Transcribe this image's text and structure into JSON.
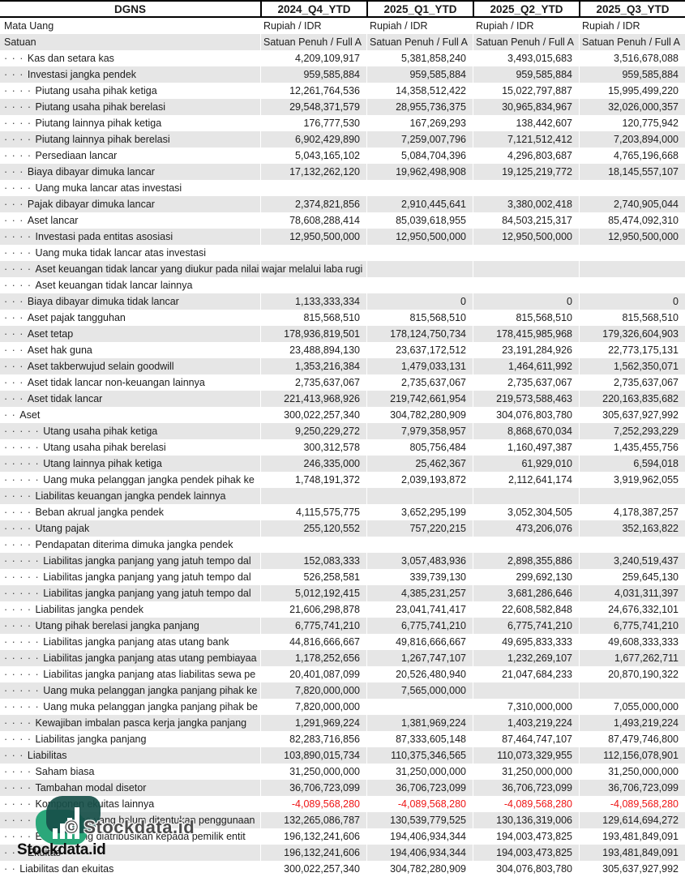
{
  "header": {
    "company": "DGNS",
    "periods": [
      "2024_Q4_YTD",
      "2025_Q1_YTD",
      "2025_Q2_YTD",
      "2025_Q3_YTD"
    ]
  },
  "meta": {
    "mata_uang_label": "Mata Uang",
    "mata_uang_values": [
      "Rupiah / IDR",
      "Rupiah / IDR",
      "Rupiah / IDR",
      "Rupiah / IDR"
    ],
    "satuan_label": "Satuan",
    "satuan_values": [
      "Satuan Penuh / Full A",
      "Satuan Penuh / Full A",
      "Satuan Penuh / Full A",
      "Satuan Penuh / Full A"
    ]
  },
  "rows": [
    {
      "dots": 3,
      "label": "Kas dan setara kas",
      "values": [
        "4,209,109,917",
        "5,381,858,240",
        "3,493,015,683",
        "3,516,678,088"
      ]
    },
    {
      "dots": 3,
      "label": "Investasi jangka pendek",
      "values": [
        "959,585,884",
        "959,585,884",
        "959,585,884",
        "959,585,884"
      ]
    },
    {
      "dots": 4,
      "label": "Piutang usaha pihak ketiga",
      "values": [
        "12,261,764,536",
        "14,358,512,422",
        "15,022,797,887",
        "15,995,499,220"
      ]
    },
    {
      "dots": 4,
      "label": "Piutang usaha pihak berelasi",
      "values": [
        "29,548,371,579",
        "28,955,736,375",
        "30,965,834,967",
        "32,026,000,357"
      ]
    },
    {
      "dots": 4,
      "label": "Piutang lainnya pihak ketiga",
      "values": [
        "176,777,530",
        "167,269,293",
        "138,442,607",
        "120,775,942"
      ]
    },
    {
      "dots": 4,
      "label": "Piutang lainnya pihak berelasi",
      "values": [
        "6,902,429,890",
        "7,259,007,796",
        "7,121,512,412",
        "7,203,894,000"
      ]
    },
    {
      "dots": 4,
      "label": "Persediaan lancar",
      "values": [
        "5,043,165,102",
        "5,084,704,396",
        "4,296,803,687",
        "4,765,196,668"
      ]
    },
    {
      "dots": 3,
      "label": "Biaya dibayar dimuka lancar",
      "values": [
        "17,132,262,120",
        "19,962,498,908",
        "19,125,219,772",
        "18,145,557,107"
      ]
    },
    {
      "dots": 4,
      "label": "Uang muka lancar atas investasi",
      "values": [
        "",
        "",
        "",
        ""
      ]
    },
    {
      "dots": 3,
      "label": "Pajak dibayar dimuka lancar",
      "values": [
        "2,374,821,856",
        "2,910,445,641",
        "3,380,002,418",
        "2,740,905,044"
      ]
    },
    {
      "dots": 3,
      "label": "Aset lancar",
      "values": [
        "78,608,288,414",
        "85,039,618,955",
        "84,503,215,317",
        "85,474,092,310"
      ]
    },
    {
      "dots": 4,
      "label": "Investasi pada entitas asosiasi",
      "values": [
        "12,950,500,000",
        "12,950,500,000",
        "12,950,500,000",
        "12,950,500,000"
      ]
    },
    {
      "dots": 4,
      "label": "Uang muka tidak lancar atas investasi",
      "values": [
        "",
        "",
        "",
        ""
      ]
    },
    {
      "dots": 4,
      "label": "Aset keuangan tidak lancar yang diukur pada nilai wajar melalui laba rugi",
      "values": [
        "",
        "",
        "",
        ""
      ]
    },
    {
      "dots": 4,
      "label": "Aset keuangan tidak lancar lainnya",
      "values": [
        "",
        "",
        "",
        ""
      ]
    },
    {
      "dots": 3,
      "label": "Biaya dibayar dimuka tidak lancar",
      "values": [
        "1,133,333,334",
        "0",
        "0",
        "0"
      ]
    },
    {
      "dots": 3,
      "label": "Aset pajak tangguhan",
      "values": [
        "815,568,510",
        "815,568,510",
        "815,568,510",
        "815,568,510"
      ]
    },
    {
      "dots": 3,
      "label": "Aset tetap",
      "values": [
        "178,936,819,501",
        "178,124,750,734",
        "178,415,985,968",
        "179,326,604,903"
      ]
    },
    {
      "dots": 3,
      "label": "Aset hak guna",
      "values": [
        "23,488,894,130",
        "23,637,172,512",
        "23,191,284,926",
        "22,773,175,131"
      ]
    },
    {
      "dots": 3,
      "label": "Aset takberwujud selain goodwill",
      "values": [
        "1,353,216,384",
        "1,479,033,131",
        "1,464,611,992",
        "1,562,350,071"
      ]
    },
    {
      "dots": 3,
      "label": "Aset tidak lancar non-keuangan lainnya",
      "values": [
        "2,735,637,067",
        "2,735,637,067",
        "2,735,637,067",
        "2,735,637,067"
      ]
    },
    {
      "dots": 3,
      "label": "Aset tidak lancar",
      "values": [
        "221,413,968,926",
        "219,742,661,954",
        "219,573,588,463",
        "220,163,835,682"
      ]
    },
    {
      "dots": 2,
      "label": "Aset",
      "values": [
        "300,022,257,340",
        "304,782,280,909",
        "304,076,803,780",
        "305,637,927,992"
      ]
    },
    {
      "dots": 5,
      "label": "Utang usaha pihak ketiga",
      "values": [
        "9,250,229,272",
        "7,979,358,957",
        "8,868,670,034",
        "7,252,293,229"
      ]
    },
    {
      "dots": 5,
      "label": "Utang usaha pihak berelasi",
      "values": [
        "300,312,578",
        "805,756,484",
        "1,160,497,387",
        "1,435,455,756"
      ]
    },
    {
      "dots": 5,
      "label": "Utang lainnya pihak ketiga",
      "values": [
        "246,335,000",
        "25,462,367",
        "61,929,010",
        "6,594,018"
      ]
    },
    {
      "dots": 5,
      "label": "Uang muka pelanggan jangka pendek pihak ke",
      "values": [
        "1,748,191,372",
        "2,039,193,872",
        "2,112,641,174",
        "3,919,962,055"
      ]
    },
    {
      "dots": 4,
      "label": "Liabilitas keuangan jangka pendek lainnya",
      "values": [
        "",
        "",
        "",
        ""
      ]
    },
    {
      "dots": 4,
      "label": "Beban akrual jangka pendek",
      "values": [
        "4,115,575,775",
        "3,652,295,199",
        "3,052,304,505",
        "4,178,387,257"
      ]
    },
    {
      "dots": 4,
      "label": "Utang pajak",
      "values": [
        "255,120,552",
        "757,220,215",
        "473,206,076",
        "352,163,822"
      ]
    },
    {
      "dots": 4,
      "label": "Pendapatan diterima dimuka jangka pendek",
      "values": [
        "",
        "",
        "",
        ""
      ]
    },
    {
      "dots": 5,
      "label": "Liabilitas jangka panjang yang jatuh tempo dal",
      "values": [
        "152,083,333",
        "3,057,483,936",
        "2,898,355,886",
        "3,240,519,437"
      ]
    },
    {
      "dots": 5,
      "label": "Liabilitas jangka panjang yang jatuh tempo dal",
      "values": [
        "526,258,581",
        "339,739,130",
        "299,692,130",
        "259,645,130"
      ]
    },
    {
      "dots": 5,
      "label": "Liabilitas jangka panjang yang jatuh tempo dal",
      "values": [
        "5,012,192,415",
        "4,385,231,257",
        "3,681,286,646",
        "4,031,311,397"
      ]
    },
    {
      "dots": 4,
      "label": "Liabilitas jangka pendek",
      "values": [
        "21,606,298,878",
        "23,041,741,417",
        "22,608,582,848",
        "24,676,332,101"
      ]
    },
    {
      "dots": 4,
      "label": "Utang pihak berelasi jangka panjang",
      "values": [
        "6,775,741,210",
        "6,775,741,210",
        "6,775,741,210",
        "6,775,741,210"
      ]
    },
    {
      "dots": 5,
      "label": "Liabilitas jangka panjang atas utang bank",
      "values": [
        "44,816,666,667",
        "49,816,666,667",
        "49,695,833,333",
        "49,608,333,333"
      ]
    },
    {
      "dots": 5,
      "label": "Liabilitas jangka panjang atas utang pembiayaa",
      "values": [
        "1,178,252,656",
        "1,267,747,107",
        "1,232,269,107",
        "1,677,262,711"
      ]
    },
    {
      "dots": 5,
      "label": "Liabilitas jangka panjang atas liabilitas sewa pe",
      "values": [
        "20,401,087,099",
        "20,526,480,940",
        "21,047,684,233",
        "20,870,190,322"
      ]
    },
    {
      "dots": 5,
      "label": "Uang muka pelanggan jangka panjang pihak ke",
      "values": [
        "7,820,000,000",
        "7,565,000,000",
        "",
        ""
      ]
    },
    {
      "dots": 5,
      "label": "Uang muka pelanggan jangka panjang pihak be",
      "values": [
        "7,820,000,000",
        "",
        "7,310,000,000",
        "7,055,000,000"
      ]
    },
    {
      "dots": 4,
      "label": "Kewajiban imbalan pasca kerja jangka panjang",
      "values": [
        "1,291,969,224",
        "1,381,969,224",
        "1,403,219,224",
        "1,493,219,224"
      ]
    },
    {
      "dots": 4,
      "label": "Liabilitas jangka panjang",
      "values": [
        "82,283,716,856",
        "87,333,605,148",
        "87,464,747,107",
        "87,479,746,800"
      ]
    },
    {
      "dots": 3,
      "label": "Liabilitas",
      "values": [
        "103,890,015,734",
        "110,375,346,565",
        "110,073,329,955",
        "112,156,078,901"
      ]
    },
    {
      "dots": 4,
      "label": "Saham biasa",
      "values": [
        "31,250,000,000",
        "31,250,000,000",
        "31,250,000,000",
        "31,250,000,000"
      ]
    },
    {
      "dots": 4,
      "label": "Tambahan modal disetor",
      "values": [
        "36,706,723,099",
        "36,706,723,099",
        "36,706,723,099",
        "36,706,723,099"
      ]
    },
    {
      "dots": 4,
      "label": "Komponen ekuitas lainnya",
      "values": [
        "-4,089,568,280",
        "-4,089,568,280",
        "-4,089,568,280",
        "-4,089,568,280"
      ]
    },
    {
      "dots": 5,
      "label": "Saldo laba yang belum ditentukan penggunaan",
      "values": [
        "132,265,086,787",
        "130,539,779,525",
        "130,136,319,006",
        "129,614,694,272"
      ]
    },
    {
      "dots": 4,
      "label": "Ekuitas yang diatribusikan kepada pemilik entit",
      "values": [
        "196,132,241,606",
        "194,406,934,344",
        "194,003,473,825",
        "193,481,849,091"
      ]
    },
    {
      "dots": 3,
      "label": "Ekuitas",
      "values": [
        "196,132,241,606",
        "194,406,934,344",
        "194,003,473,825",
        "193,481,849,091"
      ]
    },
    {
      "dots": 2,
      "label": "Liabilitas dan ekuitas",
      "values": [
        "300,022,257,340",
        "304,782,280,909",
        "304,076,803,780",
        "305,637,927,992"
      ]
    }
  ],
  "watermark": {
    "center_text": "© Stockdata.id",
    "brand_text": "Stockdata.id",
    "logo_icon": "stockdata-logo"
  },
  "colors": {
    "row_alt_bg": "#e6e6e6",
    "negative_value": "#ee1414",
    "header_border": "#000000",
    "logo_dark_teal": "#174f49",
    "logo_green": "#2ba77a",
    "watermark_gray": "#4d4d4d"
  }
}
